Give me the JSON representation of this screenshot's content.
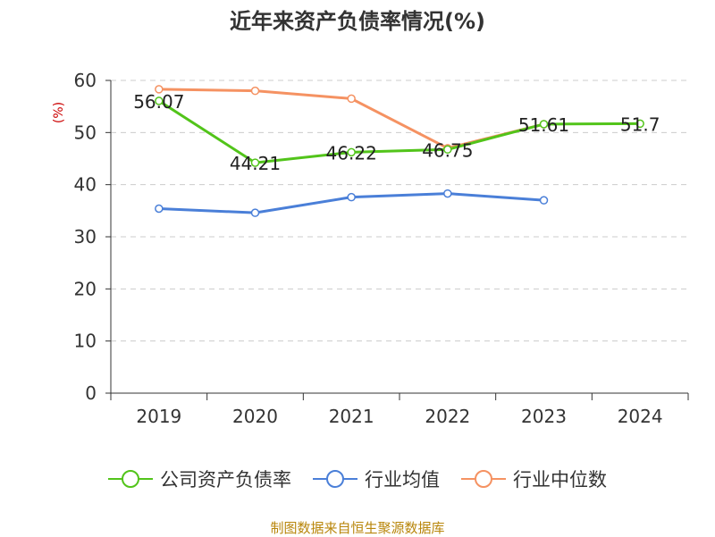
{
  "title": "近年来资产负债率情况(%)",
  "source": "制图数据来自恒生聚源数据库",
  "chart_data": {
    "type": "line",
    "title": "近年来资产负债率情况(%)",
    "ylabel": "(%)",
    "xlabel": "",
    "ylim": [
      0,
      60
    ],
    "yticks": [
      0,
      10,
      20,
      30,
      40,
      50,
      60
    ],
    "categories": [
      "2019",
      "2020",
      "2021",
      "2022",
      "2023",
      "2024"
    ],
    "grid": true,
    "legend_position": "bottom",
    "series": [
      {
        "name": "公司资产负债率",
        "color": "#52c41a",
        "values": [
          56.07,
          44.21,
          46.22,
          46.75,
          51.61,
          51.7
        ],
        "labels": true
      },
      {
        "name": "行业均值",
        "color": "#4a7fd8",
        "values": [
          35.4,
          34.6,
          37.6,
          38.3,
          37.0,
          null
        ],
        "labels": false
      },
      {
        "name": "行业中位数",
        "color": "#f59262",
        "values": [
          58.3,
          58.0,
          56.5,
          47.0,
          51.6,
          null
        ],
        "labels": false
      }
    ]
  }
}
